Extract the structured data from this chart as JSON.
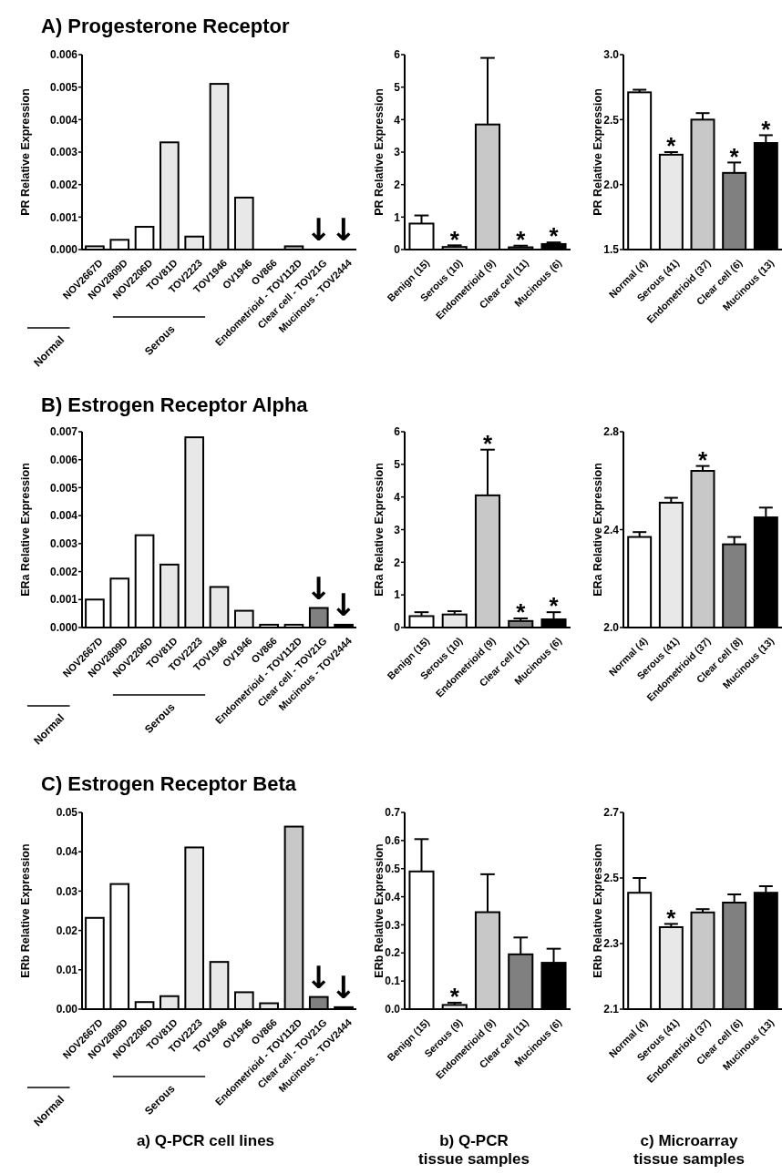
{
  "chart_data": [
    {
      "type": "bar",
      "title": "A) Progesterone Receptor",
      "ylabel": "PR Relative Expression",
      "categories": [
        "NOV2667D",
        "NOV2809D",
        "NOV2206D",
        "TOV81D",
        "TOV2223",
        "TOV1946",
        "OV1946",
        "OV866",
        "Endometrioid - TOV112D",
        "Clear cell - TOV21G",
        "Mucinous - TOV2444"
      ],
      "values": [
        0.0001,
        0.0003,
        0.0007,
        0.0033,
        0.0004,
        0.0051,
        0.0016,
        0,
        0.0001,
        0,
        0
      ],
      "colors": [
        "#ffffff",
        "#ffffff",
        "#ffffff",
        "#e8e8e8",
        "#e8e8e8",
        "#e8e8e8",
        "#e8e8e8",
        "#e8e8e8",
        "#c8c8c8",
        "#808080",
        "#000000"
      ],
      "ylim": [
        0,
        0.006
      ],
      "yticks": [
        {
          "value": 0,
          "label": "0.000"
        },
        {
          "value": 0.001,
          "label": "0.001"
        },
        {
          "value": 0.002,
          "label": "0.002"
        },
        {
          "value": 0.003,
          "label": "0.003"
        },
        {
          "value": 0.004,
          "label": "0.004"
        },
        {
          "value": 0.005,
          "label": "0.005"
        },
        {
          "value": 0.006,
          "label": "0.006"
        }
      ],
      "annotations": [
        "Normal",
        "Serous",
        {
          "text": "↓",
          "x": "Clear cell - TOV21G",
          "y": 0
        },
        {
          "text": "↓",
          "x": "Mucinous - TOV2444",
          "y": 0
        }
      ]
    },
    {
      "type": "bar",
      "ylabel": "PR Relative Expression",
      "categories": [
        "Benign (15)",
        "Serous (10)",
        "Endometrioid (9)",
        "Clear cell (11)",
        "Mucinous (6)"
      ],
      "values": [
        0.8,
        0.08,
        3.85,
        0.07,
        0.17
      ],
      "errors": [
        0.25,
        0.05,
        2.05,
        0.05,
        0.05
      ],
      "colors": [
        "#ffffff",
        "#e8e8e8",
        "#c8c8c8",
        "#808080",
        "#000000"
      ],
      "ylim": [
        0,
        6
      ],
      "yticks": [
        0,
        1,
        2,
        3,
        4,
        5,
        6
      ],
      "annotations": [
        {
          "text": "*",
          "x": "Serous (10)",
          "y": 0.13
        },
        {
          "text": "*",
          "x": "Clear cell (11)",
          "y": 0.12
        },
        {
          "text": "*",
          "x": "Mucinous (6)",
          "y": 0.22
        }
      ]
    },
    {
      "type": "bar",
      "ylabel": "PR Relative Expression",
      "categories": [
        "Normal (4)",
        "Serous (41)",
        "Endometrioid (37)",
        "Clear cell (6)",
        "Mucinous (13)"
      ],
      "values": [
        2.71,
        2.23,
        2.5,
        2.09,
        2.32
      ],
      "errors": [
        0.02,
        0.02,
        0.05,
        0.08,
        0.06
      ],
      "colors": [
        "#ffffff",
        "#e8e8e8",
        "#c8c8c8",
        "#808080",
        "#000000"
      ],
      "ylim": [
        1.5,
        3.0
      ],
      "yticks": [
        {
          "value": 1.5,
          "label": "1.5"
        },
        {
          "value": 2,
          "label": "2.0"
        },
        {
          "value": 2.5,
          "label": "2.5"
        },
        {
          "value": 3,
          "label": "3.0"
        }
      ],
      "annotations": [
        {
          "text": "*",
          "x": "Serous (41)",
          "y": 2.25
        },
        {
          "text": "*",
          "x": "Clear cell (6)",
          "y": 2.17
        },
        {
          "text": "*",
          "x": "Mucinous (13)",
          "y": 2.38
        }
      ]
    },
    {
      "type": "bar",
      "title": "B) Estrogen Receptor Alpha",
      "ylabel": "ERa Relative Expression",
      "categories": [
        "NOV2667D",
        "NOV2809D",
        "NOV2206D",
        "TOV81D",
        "TOV2223",
        "TOV1946",
        "OV1946",
        "OV866",
        "Endometrioid - TOV112D",
        "Clear cell - TOV21G",
        "Mucinous - TOV2444"
      ],
      "values": [
        0.001,
        0.00175,
        0.0033,
        0.00225,
        0.0068,
        0.00145,
        0.0006,
        0.0001,
        0.0001,
        0.0007,
        0.0001
      ],
      "colors": [
        "#ffffff",
        "#ffffff",
        "#ffffff",
        "#e8e8e8",
        "#e8e8e8",
        "#e8e8e8",
        "#e8e8e8",
        "#ffffff",
        "#ffffff",
        "#808080",
        "#000000"
      ],
      "ylim": [
        0,
        0.007
      ],
      "yticks": [
        {
          "value": 0,
          "label": "0.000"
        },
        {
          "value": 0.001,
          "label": "0.001"
        },
        {
          "value": 0.002,
          "label": "0.002"
        },
        {
          "value": 0.003,
          "label": "0.003"
        },
        {
          "value": 0.004,
          "label": "0.004"
        },
        {
          "value": 0.005,
          "label": "0.005"
        },
        {
          "value": 0.006,
          "label": "0.006"
        },
        {
          "value": 0.007,
          "label": "0.007"
        }
      ],
      "annotations": [
        "Normal",
        "Serous",
        {
          "text": "↓",
          "x": "Clear cell - TOV21G",
          "y": 0.0007
        },
        {
          "text": "↓",
          "x": "Mucinous - TOV2444",
          "y": 0.0001
        }
      ]
    },
    {
      "type": "bar",
      "ylabel": "ERa Relative Expression",
      "categories": [
        "Benign (15)",
        "Serous (10)",
        "Endometrioid (9)",
        "Clear cell (11)",
        "Mucinous (6)"
      ],
      "values": [
        0.35,
        0.4,
        4.05,
        0.2,
        0.25
      ],
      "errors": [
        0.12,
        0.1,
        1.4,
        0.08,
        0.22
      ],
      "colors": [
        "#ffffff",
        "#e8e8e8",
        "#c8c8c8",
        "#808080",
        "#000000"
      ],
      "ylim": [
        0,
        6
      ],
      "yticks": [
        0,
        1,
        2,
        3,
        4,
        5,
        6
      ],
      "annotations": [
        {
          "text": "*",
          "x": "Endometrioid (9)",
          "y": 5.45
        },
        {
          "text": "*",
          "x": "Clear cell (11)",
          "y": 0.28
        },
        {
          "text": "*",
          "x": "Mucinous (6)",
          "y": 0.47
        }
      ]
    },
    {
      "type": "bar",
      "ylabel": "ERa Relative Expression",
      "categories": [
        "Normal (4)",
        "Serous (41)",
        "Endometrioid (37)",
        "Clear cell (8)",
        "Mucinous (13)"
      ],
      "values": [
        2.37,
        2.51,
        2.64,
        2.34,
        2.45
      ],
      "errors": [
        0.02,
        0.02,
        0.02,
        0.03,
        0.04
      ],
      "colors": [
        "#ffffff",
        "#e8e8e8",
        "#c8c8c8",
        "#808080",
        "#000000"
      ],
      "ylim": [
        2.0,
        2.8
      ],
      "yticks": [
        {
          "value": 2,
          "label": "2.0"
        },
        {
          "value": 2.4,
          "label": "2.4"
        },
        {
          "value": 2.8,
          "label": "2.8"
        }
      ],
      "annotations": [
        {
          "text": "*",
          "x": "Endometrioid (37)",
          "y": 2.66
        }
      ]
    },
    {
      "type": "bar",
      "title": "C) Estrogen Receptor Beta",
      "ylabel": "ERb Relative Expression",
      "xlabel": "a) Q-PCR  cell lines",
      "categories": [
        "NOV2667D",
        "NOV2809D",
        "NOV2206D",
        "TOV81D",
        "TOV2223",
        "TOV1946",
        "OV1946",
        "OV866",
        "Endometrioid - TOV112D",
        "Clear cell - TOV21G",
        "Mucinous - TOV2444"
      ],
      "values": [
        0.0232,
        0.0318,
        0.0018,
        0.0033,
        0.0411,
        0.012,
        0.0043,
        0.0015,
        0.0464,
        0.0031,
        0.0005
      ],
      "colors": [
        "#ffffff",
        "#ffffff",
        "#ffffff",
        "#e8e8e8",
        "#e8e8e8",
        "#e8e8e8",
        "#e8e8e8",
        "#e8e8e8",
        "#c8c8c8",
        "#808080",
        "#000000"
      ],
      "ylim": [
        0,
        0.05
      ],
      "yticks": [
        {
          "value": 0,
          "label": "0.00"
        },
        {
          "value": 0.01,
          "label": "0.01"
        },
        {
          "value": 0.02,
          "label": "0.02"
        },
        {
          "value": 0.03,
          "label": "0.03"
        },
        {
          "value": 0.04,
          "label": "0.04"
        },
        {
          "value": 0.05,
          "label": "0.05"
        }
      ],
      "annotations": [
        "Normal",
        "Serous",
        {
          "text": "↓",
          "x": "Clear cell - TOV21G",
          "y": 0.0031
        },
        {
          "text": "↓",
          "x": "Mucinous - TOV2444",
          "y": 0.0005
        }
      ]
    },
    {
      "type": "bar",
      "ylabel": "ERb Relative Expression",
      "xlabel": "b) Q-PCR tissue samples",
      "categories": [
        "Benign (15)",
        "Serous (9)",
        "Endometrioid (9)",
        "Clear cell (11)",
        "Mucinous (6)"
      ],
      "values": [
        0.49,
        0.015,
        0.345,
        0.195,
        0.165
      ],
      "errors": [
        0.115,
        0.008,
        0.135,
        0.06,
        0.05
      ],
      "colors": [
        "#ffffff",
        "#e8e8e8",
        "#c8c8c8",
        "#808080",
        "#000000"
      ],
      "ylim": [
        0,
        0.7
      ],
      "yticks": [
        {
          "value": 0,
          "label": "0.0"
        },
        0.1,
        0.2,
        0.3,
        0.4,
        0.5,
        0.6,
        0.7
      ],
      "annotations": [
        {
          "text": "*",
          "x": "Serous (9)",
          "y": 0.023
        }
      ]
    },
    {
      "type": "bar",
      "ylabel": "ERb Relative Expression",
      "xlabel": "c) Microarray tissue samples",
      "categories": [
        "Normal (4)",
        "Serous (41)",
        "Endometrioid (37)",
        "Clear cell (6)",
        "Mucinous (13)"
      ],
      "values": [
        2.455,
        2.35,
        2.395,
        2.425,
        2.455
      ],
      "errors": [
        0.045,
        0.01,
        0.01,
        0.025,
        0.02
      ],
      "colors": [
        "#ffffff",
        "#e8e8e8",
        "#c8c8c8",
        "#808080",
        "#000000"
      ],
      "ylim": [
        2.1,
        2.7
      ],
      "yticks": [
        {
          "value": 2.1,
          "label": "2.1"
        },
        {
          "value": 2.3,
          "label": "2.3"
        },
        {
          "value": 2.5,
          "label": "2.5"
        },
        {
          "value": 2.7,
          "label": "2.7"
        }
      ],
      "annotations": [
        {
          "text": "*",
          "x": "Serous (41)",
          "y": 2.36
        }
      ]
    }
  ]
}
